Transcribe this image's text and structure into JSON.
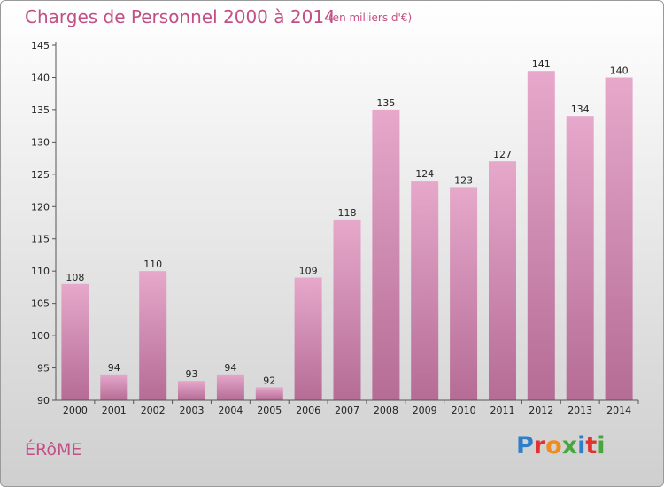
{
  "header": {
    "title": "Charges de Personnel 2000 à 2014",
    "subtitle": "(en milliers d'€)"
  },
  "footer": {
    "place": "ÉRôME",
    "logo_letters": [
      "P",
      "r",
      "o",
      "x",
      "i",
      "t",
      "i"
    ],
    "logo_colors": [
      "#2f7ec9",
      "#e0332f",
      "#f08c1c",
      "#46a83c",
      "#2f7ec9",
      "#e0332f",
      "#46a83c"
    ]
  },
  "colors": {
    "bar_top": "#e6a8cb",
    "bar_bottom": "#b56c95",
    "accent": "#c24f86"
  },
  "chart_data": {
    "type": "bar",
    "title": "Charges de Personnel 2000 à 2014",
    "subtitle": "(en milliers d'€)",
    "categories": [
      "2000",
      "2001",
      "2002",
      "2003",
      "2004",
      "2005",
      "2006",
      "2007",
      "2008",
      "2009",
      "2010",
      "2011",
      "2012",
      "2013",
      "2014"
    ],
    "values": [
      108,
      94,
      110,
      93,
      94,
      92,
      109,
      118,
      135,
      124,
      123,
      127,
      141,
      134,
      140
    ],
    "ylim": [
      90,
      145
    ],
    "yticks": [
      90,
      95,
      100,
      105,
      110,
      115,
      120,
      125,
      130,
      135,
      140,
      145
    ],
    "grid": false,
    "data_labels": true
  }
}
